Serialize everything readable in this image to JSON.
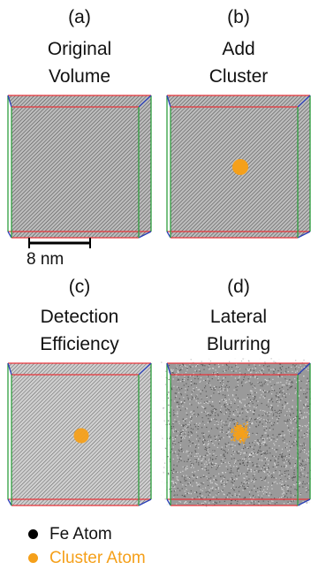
{
  "panels": [
    {
      "letter": "(a)",
      "title_line1": "Original",
      "title_line2": "Volume"
    },
    {
      "letter": "(b)",
      "title_line1": "Add",
      "title_line2": "Cluster"
    },
    {
      "letter": "(c)",
      "title_line1": "Detection",
      "title_line2": "Efficiency"
    },
    {
      "letter": "(d)",
      "title_line1": "Lateral",
      "title_line2": "Blurring"
    }
  ],
  "scale_bar": {
    "label": "8 nm"
  },
  "legend": [
    {
      "label": "Fe Atom",
      "color": "#000000"
    },
    {
      "label": "Cluster Atom",
      "color": "#f5a01a"
    }
  ],
  "colors": {
    "edge_red": "#e8343a",
    "edge_green": "#2e9e3e",
    "edge_blue": "#2a3fb8",
    "fill_gray": "#8e8e8e",
    "cluster_orange": "#f5a01a"
  }
}
